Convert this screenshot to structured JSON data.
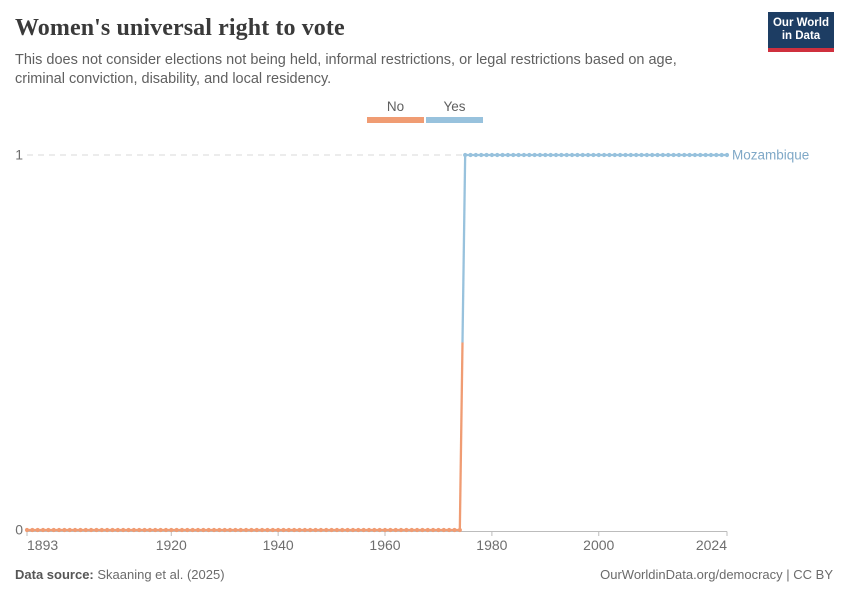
{
  "header": {
    "title": "Women's universal right to vote",
    "subtitle": "This does not consider elections not being held, informal restrictions, or legal restrictions based on age, criminal conviction, disability, and local residency.",
    "logo": {
      "line1": "Our World",
      "line2": "in Data",
      "bg_color": "#1d3d63",
      "accent_color": "#cf303e"
    }
  },
  "legend": {
    "items": [
      {
        "label": "No",
        "color": "#f09c73"
      },
      {
        "label": "Yes",
        "color": "#98c2dd"
      }
    ]
  },
  "chart_data": {
    "type": "line",
    "title": "Women's universal right to vote",
    "entity": "Mozambique",
    "entity_label_color": "#7fa8c7",
    "x_range": [
      1893,
      2024
    ],
    "y_range": [
      0,
      1
    ],
    "x_ticks": [
      1893,
      1920,
      1940,
      1960,
      1980,
      2000,
      2024
    ],
    "y_ticks": [
      0,
      1
    ],
    "grid": "dashed horizontal gridline at y=1, solid axis at y=0",
    "axis_color": "#bcbcbc",
    "gridline_color": "#d9d9d9",
    "tick_label_color": "#6e6e6e",
    "series": [
      {
        "name": "Mozambique",
        "steps": [
          {
            "category": "No",
            "value": 0,
            "from_year": 1893,
            "to_year": 1974,
            "color": "#f09c73"
          },
          {
            "category": "Yes",
            "value": 1,
            "from_year": 1975,
            "to_year": 2024,
            "color": "#98c2dd"
          }
        ],
        "transition_year": 1975
      }
    ]
  },
  "footer": {
    "source_label": "Data source:",
    "source_value": " Skaaning et al. (2025)",
    "credit": "OurWorldinData.org/democracy | CC BY"
  }
}
